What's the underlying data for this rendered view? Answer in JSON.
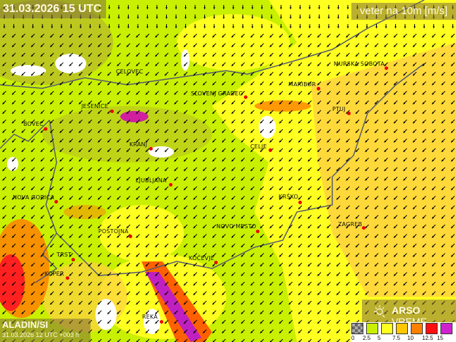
{
  "header": {
    "datetime": "31.03.2026 15 UTC",
    "variable": "veter na 10m [m/s]"
  },
  "model": {
    "name": "ALADIN/SI",
    "run": "31.03.2026 12 UTC +003 h"
  },
  "logo": {
    "brand": "ARSO",
    "suffix": "VREME"
  },
  "legend": {
    "colors": [
      "#888888",
      "#c8f000",
      "#ffff20",
      "#ffc800",
      "#ff8000",
      "#ff1010",
      "#d020d0"
    ],
    "ticks": [
      "0",
      "2.5",
      "5",
      "7.5",
      "10",
      "12.5",
      "15"
    ]
  },
  "wind_direction": "from north-east (arrows pointing south-west)",
  "cities": [
    {
      "name": "CELOVEC"
    },
    {
      "name": "SLOVENJ GRADEC"
    },
    {
      "name": "MARIBOR"
    },
    {
      "name": "MURSKA SOBOTA"
    },
    {
      "name": "PTUJ"
    },
    {
      "name": "JESENICE"
    },
    {
      "name": "BOVEC"
    },
    {
      "name": "KRANJ"
    },
    {
      "name": "CELJE"
    },
    {
      "name": "LJUBLJANA"
    },
    {
      "name": "NOVA GORICA"
    },
    {
      "name": "KRŠKO"
    },
    {
      "name": "ZAGREB"
    },
    {
      "name": "NOVO MESTO"
    },
    {
      "name": "POSTOJNA"
    },
    {
      "name": "TRST"
    },
    {
      "name": "KOČEVJE"
    },
    {
      "name": "KOPER"
    },
    {
      "name": "REKA"
    }
  ]
}
